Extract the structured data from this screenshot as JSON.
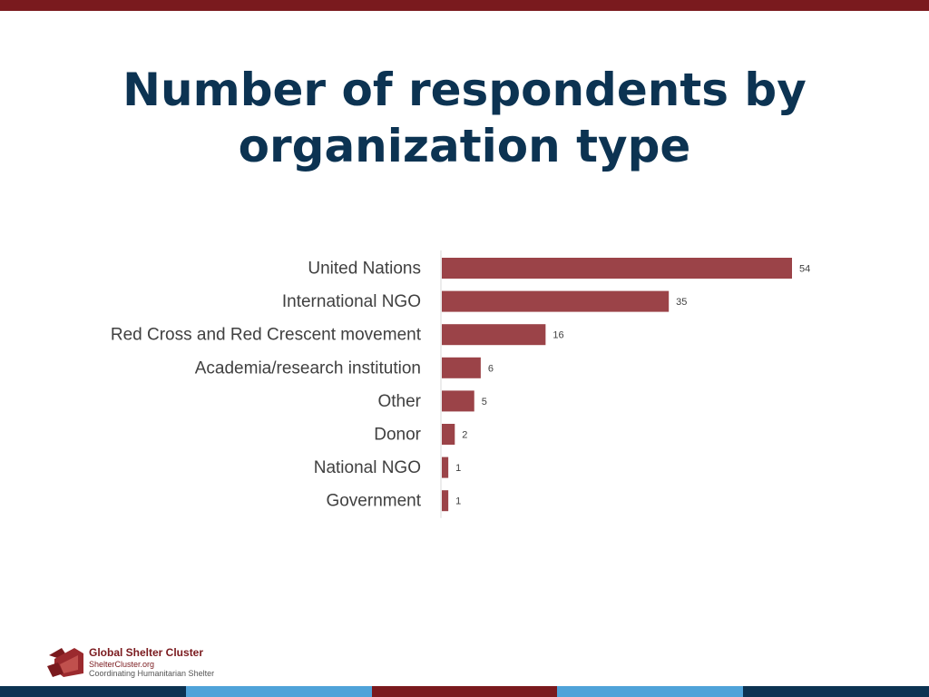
{
  "slide": {
    "title": "Number of respondents by organization type"
  },
  "chart_data": {
    "type": "bar",
    "orientation": "horizontal",
    "title": "",
    "xlabel": "",
    "ylabel": "",
    "categories": [
      "United Nations",
      "International NGO",
      "Red Cross and Red Crescent movement",
      "Academia/research institution",
      "Other",
      "Donor",
      "National NGO",
      "Government"
    ],
    "values": [
      54,
      35,
      16,
      6,
      5,
      2,
      1,
      1
    ],
    "xlim": [
      0,
      54
    ],
    "grid": false,
    "legend": "none",
    "bar_color": "#9b4348"
  },
  "footer": {
    "org_name": "Global Shelter Cluster",
    "url": "ShelterCluster.org",
    "tagline": "Coordinating Humanitarian Shelter",
    "stripe_colors": [
      "#0c3352",
      "#4fa3d9",
      "#7a1a1e",
      "#4fa3d9",
      "#0c3352"
    ]
  },
  "colors": {
    "title": "#0c3352",
    "brand": "#7a1a1e"
  }
}
